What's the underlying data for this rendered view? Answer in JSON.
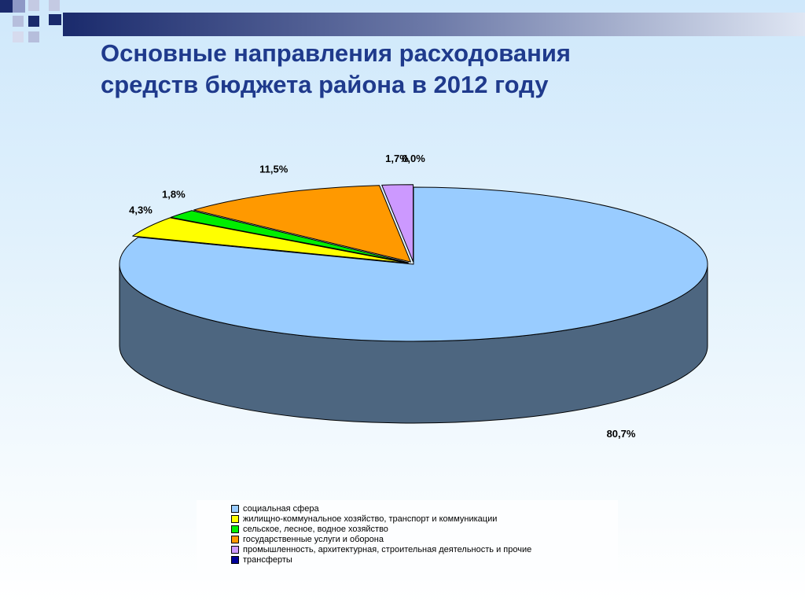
{
  "slide": {
    "title_line1": "Основные направления расходования",
    "title_line2": "средств бюджета района в 2012 году"
  },
  "chart_data": {
    "type": "pie",
    "style": "3d",
    "legend_position": "bottom",
    "series": [
      {
        "name": "социальная сфера",
        "value": 80.7,
        "label": "80,7%",
        "color": "#99ccff"
      },
      {
        "name": "жилищно-коммунальное хозяйство, транспорт и коммуникации",
        "value": 4.3,
        "label": "4,3%",
        "color": "#ffff00"
      },
      {
        "name": "сельское, лесное, водное хозяйство",
        "value": 1.8,
        "label": "1,8%",
        "color": "#00ee00"
      },
      {
        "name": "государственные услуги и оборона",
        "value": 11.5,
        "label": "11,5%",
        "color": "#ff9900"
      },
      {
        "name": "промышленность, архитектурная, строительная деятельность и прочие",
        "value": 1.7,
        "label": "1,7%",
        "color": "#cc99ff"
      },
      {
        "name": "трансферты",
        "value": 0.0,
        "label": "0,0%",
        "color": "#000099"
      }
    ]
  }
}
